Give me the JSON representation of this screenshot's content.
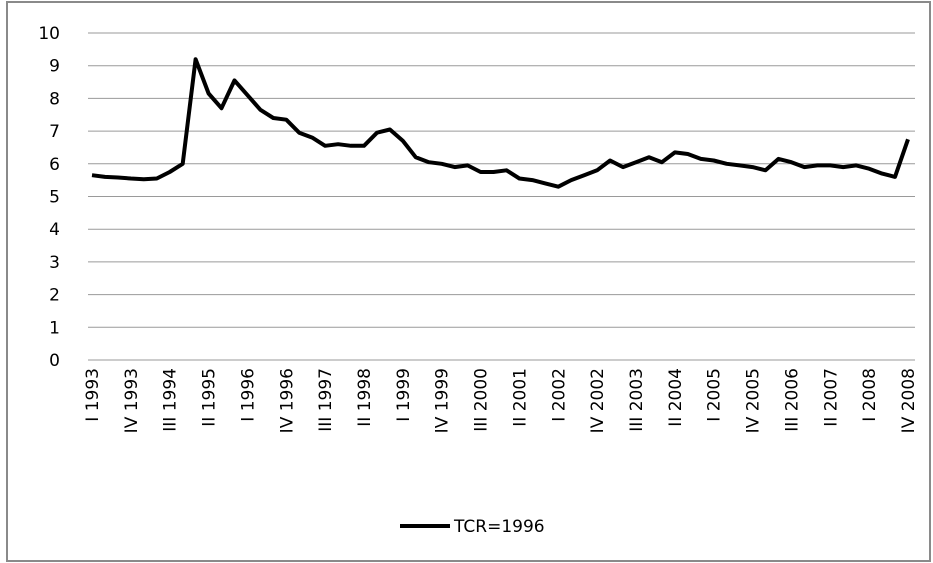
{
  "chart_data": {
    "type": "line",
    "categories": [
      "I 1993",
      null,
      null,
      "IV 1993",
      null,
      null,
      "III  1994",
      null,
      null,
      "II 1995",
      null,
      null,
      "I 1996",
      null,
      null,
      "IV 1996",
      null,
      null,
      "III  1997",
      null,
      null,
      "II 1998",
      null,
      null,
      "I 1999",
      null,
      null,
      "IV 1999",
      null,
      null,
      "III 2000",
      null,
      null,
      "II 2001",
      null,
      null,
      "I 2002",
      null,
      null,
      "IV 2002",
      null,
      null,
      "III 2003",
      null,
      null,
      "II 2004",
      null,
      null,
      "I 2005",
      null,
      null,
      "IV 2005",
      null,
      null,
      "III 2006",
      null,
      null,
      "II 2007",
      null,
      null,
      "I 2008",
      null,
      null,
      "IV 2008"
    ],
    "series": [
      {
        "name": "TCR=1996",
        "color": "#000000",
        "values": [
          5.65,
          5.6,
          5.58,
          5.55,
          5.53,
          5.55,
          5.75,
          6.0,
          9.2,
          8.15,
          7.7,
          8.55,
          8.1,
          7.65,
          7.4,
          7.35,
          6.95,
          6.8,
          6.55,
          6.6,
          6.55,
          6.55,
          6.95,
          7.05,
          6.7,
          6.2,
          6.05,
          6.0,
          5.9,
          5.95,
          5.75,
          5.75,
          5.8,
          5.55,
          5.5,
          5.4,
          5.3,
          5.5,
          5.65,
          5.8,
          6.1,
          5.9,
          6.05,
          6.2,
          6.05,
          6.35,
          6.3,
          6.15,
          6.1,
          6.0,
          5.95,
          5.9,
          5.8,
          6.15,
          6.05,
          5.9,
          5.95,
          5.95,
          5.9,
          5.95,
          5.85,
          5.7,
          5.6,
          6.75
        ]
      }
    ],
    "ylim": [
      0,
      10
    ],
    "yticks": [
      0,
      1,
      2,
      3,
      4,
      5,
      6,
      7,
      8,
      9,
      10
    ],
    "grid": true,
    "legend": "bottom"
  }
}
